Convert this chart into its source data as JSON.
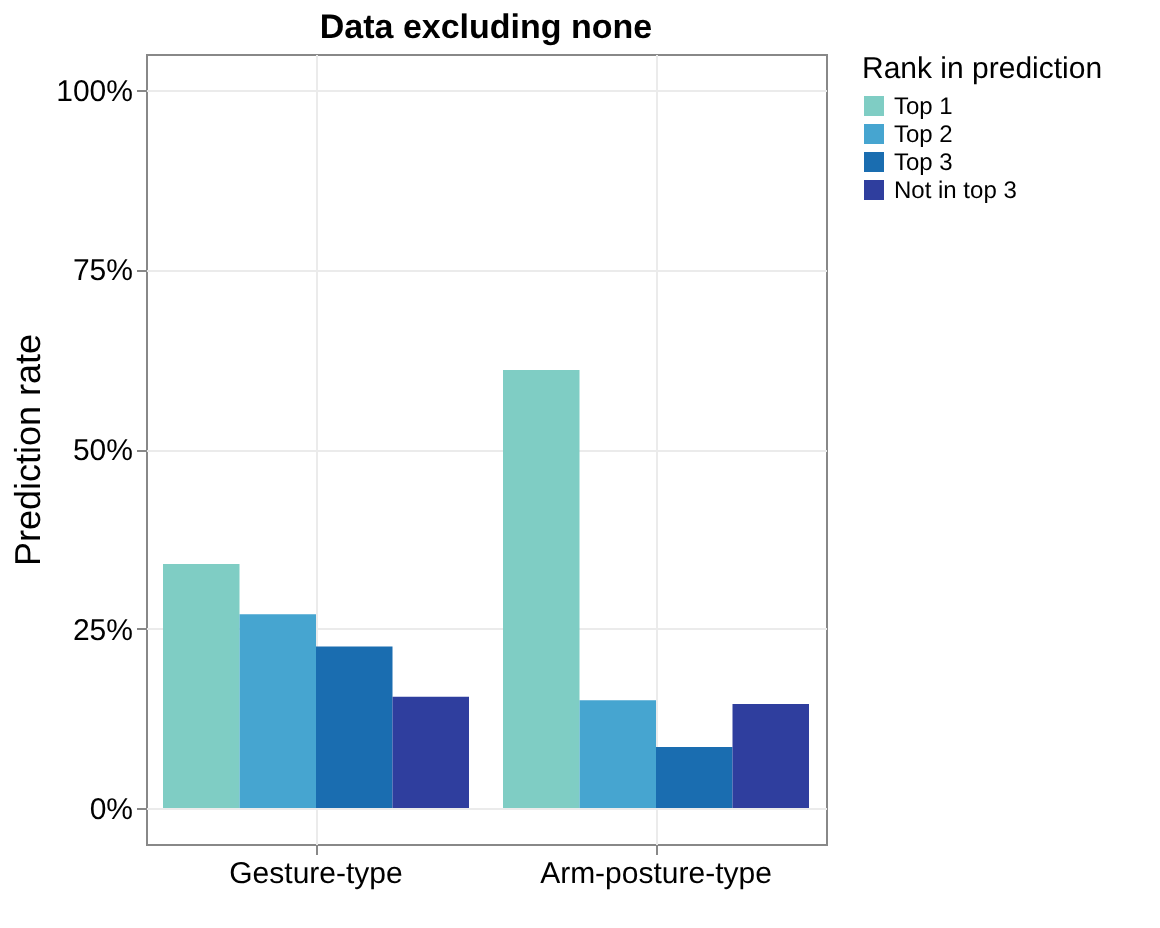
{
  "chart_data": {
    "type": "bar",
    "title": "Data excluding none",
    "ylabel": "Prediction rate",
    "legend_title": "Rank in prediction",
    "categories": [
      "Gesture-type",
      "Arm-posture-type"
    ],
    "series": [
      {
        "name": "Top 1",
        "color": "#7fcdc4",
        "values": [
          34,
          61
        ]
      },
      {
        "name": "Top 2",
        "color": "#46a5d0",
        "values": [
          27,
          15
        ]
      },
      {
        "name": "Top 3",
        "color": "#1a6db0",
        "values": [
          22.5,
          8.5
        ]
      },
      {
        "name": "Not in top 3",
        "color": "#2f3e9e",
        "values": [
          15.5,
          14.5
        ]
      }
    ],
    "ylim": [
      -5,
      105
    ],
    "yticks": [
      {
        "value": 0,
        "label": "0%"
      },
      {
        "value": 25,
        "label": "25%"
      },
      {
        "value": 50,
        "label": "50%"
      },
      {
        "value": 75,
        "label": "75%"
      },
      {
        "value": 100,
        "label": "100%"
      }
    ],
    "grid": true,
    "legend": "right"
  }
}
